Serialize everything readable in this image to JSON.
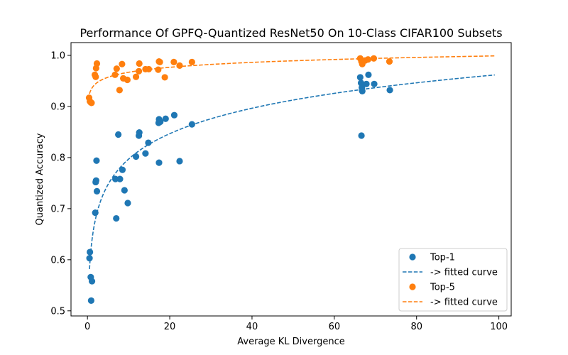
{
  "chart_data": {
    "type": "scatter",
    "title": "Performance Of GPFQ-Quantized ResNet50 On 10-Class CIFAR100 Subsets",
    "xlabel": "Average KL Divergence",
    "ylabel": "Quantized Accuracy",
    "xlim": [
      -4,
      103
    ],
    "ylim": [
      0.49,
      1.025
    ],
    "xticks": [
      0,
      20,
      40,
      60,
      80,
      100
    ],
    "yticks": [
      0.5,
      0.6,
      0.7,
      0.8,
      0.9,
      1.0
    ],
    "ytick_labels": [
      "0.5",
      "0.6",
      "0.7",
      "0.8",
      "0.9",
      "1.0"
    ],
    "grid": false,
    "legend_position": "bottom-right",
    "series": [
      {
        "name": "Top-1",
        "color": "#1f77b4",
        "points": [
          [
            0.5,
            0.603
          ],
          [
            0.6,
            0.615
          ],
          [
            0.8,
            0.566
          ],
          [
            1.1,
            0.558
          ],
          [
            0.9,
            0.52
          ],
          [
            1.9,
            0.692
          ],
          [
            2.3,
            0.734
          ],
          [
            2.0,
            0.752
          ],
          [
            2.1,
            0.755
          ],
          [
            2.2,
            0.794
          ],
          [
            6.8,
            0.758
          ],
          [
            7.0,
            0.681
          ],
          [
            7.5,
            0.845
          ],
          [
            7.9,
            0.758
          ],
          [
            8.5,
            0.776
          ],
          [
            9.0,
            0.736
          ],
          [
            9.8,
            0.711
          ],
          [
            11.8,
            0.802
          ],
          [
            12.5,
            0.843
          ],
          [
            12.6,
            0.849
          ],
          [
            14.1,
            0.808
          ],
          [
            14.8,
            0.829
          ],
          [
            17.4,
            0.79
          ],
          [
            17.3,
            0.868
          ],
          [
            17.4,
            0.875
          ],
          [
            17.7,
            0.87
          ],
          [
            19.0,
            0.876
          ],
          [
            21.1,
            0.883
          ],
          [
            22.4,
            0.793
          ],
          [
            25.4,
            0.865
          ],
          [
            66.3,
            0.957
          ],
          [
            66.5,
            0.946
          ],
          [
            66.7,
            0.937
          ],
          [
            66.8,
            0.93
          ],
          [
            66.6,
            0.843
          ],
          [
            67.8,
            0.944
          ],
          [
            68.3,
            0.962
          ],
          [
            69.7,
            0.944
          ],
          [
            73.5,
            0.932
          ]
        ],
        "fit": {
          "name": "-> fitted curve",
          "x_range": [
            0.5,
            99
          ]
        }
      },
      {
        "name": "Top-5",
        "color": "#ff7f0e",
        "points": [
          [
            0.4,
            0.917
          ],
          [
            0.6,
            0.91
          ],
          [
            0.8,
            0.908
          ],
          [
            1.0,
            0.907
          ],
          [
            1.8,
            0.962
          ],
          [
            2.0,
            0.958
          ],
          [
            2.1,
            0.975
          ],
          [
            2.3,
            0.984
          ],
          [
            6.7,
            0.962
          ],
          [
            7.1,
            0.974
          ],
          [
            7.8,
            0.932
          ],
          [
            8.4,
            0.983
          ],
          [
            8.7,
            0.955
          ],
          [
            9.7,
            0.952
          ],
          [
            11.8,
            0.958
          ],
          [
            12.5,
            0.969
          ],
          [
            12.6,
            0.984
          ],
          [
            14.1,
            0.973
          ],
          [
            14.9,
            0.973
          ],
          [
            17.2,
            0.972
          ],
          [
            17.4,
            0.988
          ],
          [
            17.6,
            0.987
          ],
          [
            18.8,
            0.957
          ],
          [
            21.0,
            0.987
          ],
          [
            22.4,
            0.98
          ],
          [
            25.4,
            0.987
          ],
          [
            66.3,
            0.994
          ],
          [
            66.6,
            0.988
          ],
          [
            66.8,
            0.983
          ],
          [
            67.5,
            0.99
          ],
          [
            68.2,
            0.992
          ],
          [
            69.6,
            0.994
          ],
          [
            73.4,
            0.988
          ]
        ],
        "fit": {
          "name": "-> fitted curve",
          "x_range": [
            0.5,
            99
          ]
        }
      }
    ]
  }
}
